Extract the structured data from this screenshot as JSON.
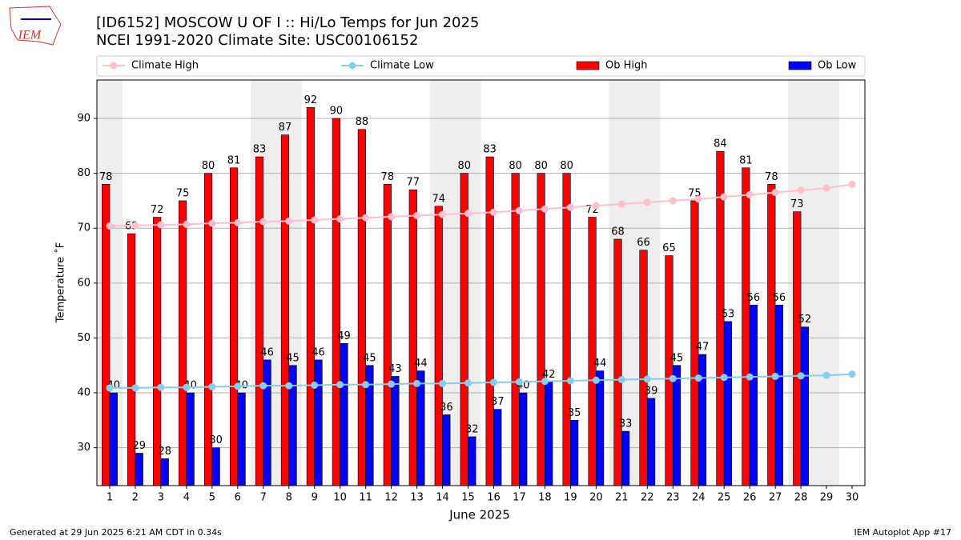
{
  "logo_text": "IEM",
  "footer": {
    "left": "Generated at 29 Jun 2025 6:21 AM CDT in 0.34s",
    "right": "IEM Autoplot App #17"
  },
  "chart_data": {
    "type": "bar",
    "title": "[ID6152] MOSCOW U OF I :: Hi/Lo Temps for Jun 2025",
    "subtitle": "NCEI 1991-2020 Climate Site: USC00106152",
    "x_label": "June 2025",
    "y_label": "Temperature ˚F",
    "x": [
      1,
      2,
      3,
      4,
      5,
      6,
      7,
      8,
      9,
      10,
      11,
      12,
      13,
      14,
      15,
      16,
      17,
      18,
      19,
      20,
      21,
      22,
      23,
      24,
      25,
      26,
      27,
      28,
      29,
      30
    ],
    "xlim": [
      0.5,
      30.5
    ],
    "xticks": [
      1,
      2,
      3,
      4,
      5,
      6,
      7,
      8,
      9,
      10,
      11,
      12,
      13,
      14,
      15,
      16,
      17,
      18,
      19,
      20,
      21,
      22,
      23,
      24,
      25,
      26,
      27,
      28,
      29,
      30
    ],
    "ylim": [
      23.1,
      97.0
    ],
    "yticks": [
      30,
      40,
      50,
      60,
      70,
      80,
      90
    ],
    "grid": true,
    "shaded_days": [
      1,
      7,
      8,
      14,
      15,
      21,
      22,
      28,
      29
    ],
    "shade_color": "#eeeeee",
    "series": [
      {
        "name": "Climate High",
        "kind": "line",
        "color": "#ffc0cb",
        "values": [
          70.4,
          70.5,
          70.6,
          70.7,
          70.9,
          71.0,
          71.2,
          71.3,
          71.5,
          71.7,
          71.9,
          72.1,
          72.3,
          72.5,
          72.7,
          72.9,
          73.2,
          73.5,
          73.8,
          74.1,
          74.4,
          74.7,
          75.0,
          75.3,
          75.7,
          76.1,
          76.5,
          76.9,
          77.3,
          78.0
        ]
      },
      {
        "name": "Climate Low",
        "kind": "line",
        "color": "#87ceeb",
        "values": [
          40.9,
          40.9,
          41.0,
          41.0,
          41.1,
          41.2,
          41.3,
          41.3,
          41.4,
          41.5,
          41.5,
          41.6,
          41.7,
          41.7,
          41.8,
          41.9,
          42.0,
          42.1,
          42.2,
          42.3,
          42.4,
          42.5,
          42.6,
          42.7,
          42.8,
          42.9,
          43.0,
          43.1,
          43.2,
          43.4
        ]
      },
      {
        "name": "Ob High",
        "kind": "bar",
        "offset": -0.3,
        "color": "#ff0000",
        "values": [
          78,
          69,
          72,
          75,
          80,
          81,
          83,
          87,
          92,
          90,
          88,
          78,
          77,
          74,
          80,
          83,
          80,
          80,
          80,
          72,
          68,
          66,
          65,
          75,
          84,
          81,
          78,
          73,
          null,
          null
        ]
      },
      {
        "name": "Ob Low",
        "kind": "bar",
        "offset": 0,
        "color": "#0000ff",
        "values": [
          40,
          29,
          28,
          40,
          30,
          40,
          46,
          45,
          46,
          49,
          45,
          43,
          44,
          36,
          32,
          37,
          40,
          42,
          35,
          44,
          33,
          39,
          45,
          47,
          53,
          56,
          56,
          52,
          null,
          null
        ]
      }
    ]
  }
}
